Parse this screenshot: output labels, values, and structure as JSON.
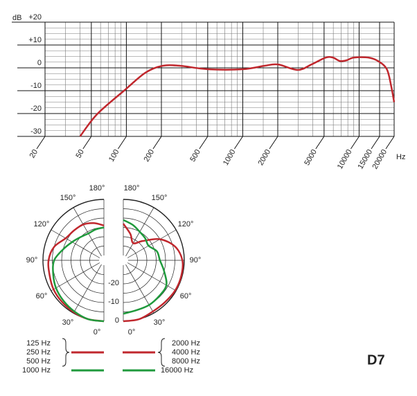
{
  "model": "D7",
  "chart_data": [
    {
      "type": "line",
      "y_label": "dB",
      "x_label": "Hz",
      "xscale": "log",
      "xlim": [
        20,
        20000
      ],
      "xticks": [
        20,
        50,
        100,
        200,
        500,
        1000,
        2000,
        5000,
        10000,
        15000,
        20000
      ],
      "xminorticks": [
        30,
        40,
        60,
        70,
        80,
        90,
        150,
        300,
        400,
        600,
        700,
        800,
        900,
        1500,
        3000,
        4000,
        6000,
        7000,
        8000,
        9000
      ],
      "ylim": [
        -30,
        20
      ],
      "yticks": [
        {
          "value": 20,
          "label": "+20"
        },
        {
          "value": 10,
          "label": "+10"
        },
        0,
        -10,
        -20,
        -30
      ],
      "yminorticks": [
        17.5,
        15,
        12.5,
        7.5,
        5,
        2.5,
        -2.5,
        -5,
        -7.5,
        -12.5,
        -15,
        -17.5,
        -22.5,
        -25,
        -27.5
      ],
      "grid": true,
      "color": "#c0272d",
      "x": [
        40,
        56,
        97,
        146,
        205,
        290,
        500,
        1000,
        1540,
        2000,
        2970,
        3900,
        5160,
        5950,
        6840,
        7800,
        9000,
        12000,
        14500,
        17300,
        18900,
        20000
      ],
      "values": [
        -30,
        -20.3,
        -9.7,
        -2.1,
        0.9,
        0.9,
        -0.6,
        -0.6,
        0.9,
        1.5,
        -0.9,
        1.5,
        4.5,
        4.5,
        3,
        3.3,
        4.5,
        4.5,
        3,
        -0.6,
        -8.2,
        -15
      ]
    },
    {
      "type": "polar",
      "angle_ticks": [
        {
          "value": 0,
          "label": "0°"
        },
        {
          "value": 30,
          "label": "30°"
        },
        {
          "value": 60,
          "label": "60°"
        },
        {
          "value": 90,
          "label": "90°"
        },
        {
          "value": 120,
          "label": "120°"
        },
        {
          "value": 150,
          "label": "150°"
        },
        {
          "value": 180,
          "label": "180°"
        }
      ],
      "rlim": [
        -30,
        0
      ],
      "rticks": [
        0,
        -10,
        -20
      ],
      "rminorticks": [
        -5,
        -15,
        -25
      ],
      "theta": [
        0,
        15,
        30,
        45,
        60,
        75,
        90,
        105,
        120,
        135,
        150,
        165,
        180
      ],
      "series": [
        {
          "name": [
            "125 Hz",
            "250 Hz",
            "500 Hz"
          ],
          "color": "#c0272d",
          "side": "left",
          "values": [
            0,
            0,
            -0.5,
            -1,
            -1.5,
            -2.5,
            -3,
            -5,
            -9,
            -10,
            -10.5,
            -12,
            -14
          ]
        },
        {
          "name": [
            "1000 Hz"
          ],
          "color": "#1f9a3c",
          "side": "left",
          "values": [
            0,
            0,
            -1,
            -2,
            -3,
            -4.5,
            -6,
            -10,
            -13,
            -15,
            -16,
            -15.5,
            -15
          ]
        },
        {
          "name": [
            "2000 Hz",
            "4000 Hz",
            "8000 Hz"
          ],
          "color": "#c0272d",
          "side": "right",
          "values": [
            0,
            0,
            -1,
            -1,
            -0.5,
            -0.5,
            -1,
            -4,
            -10,
            -18,
            -22,
            -18,
            -13
          ]
        },
        {
          "name": [
            "16000 Hz"
          ],
          "color": "#1f9a3c",
          "side": "right",
          "values": [
            -4,
            -5,
            -5,
            -5.5,
            -6,
            -10,
            -13,
            -14,
            -17,
            -16,
            -15,
            -13,
            -11
          ]
        }
      ]
    }
  ]
}
